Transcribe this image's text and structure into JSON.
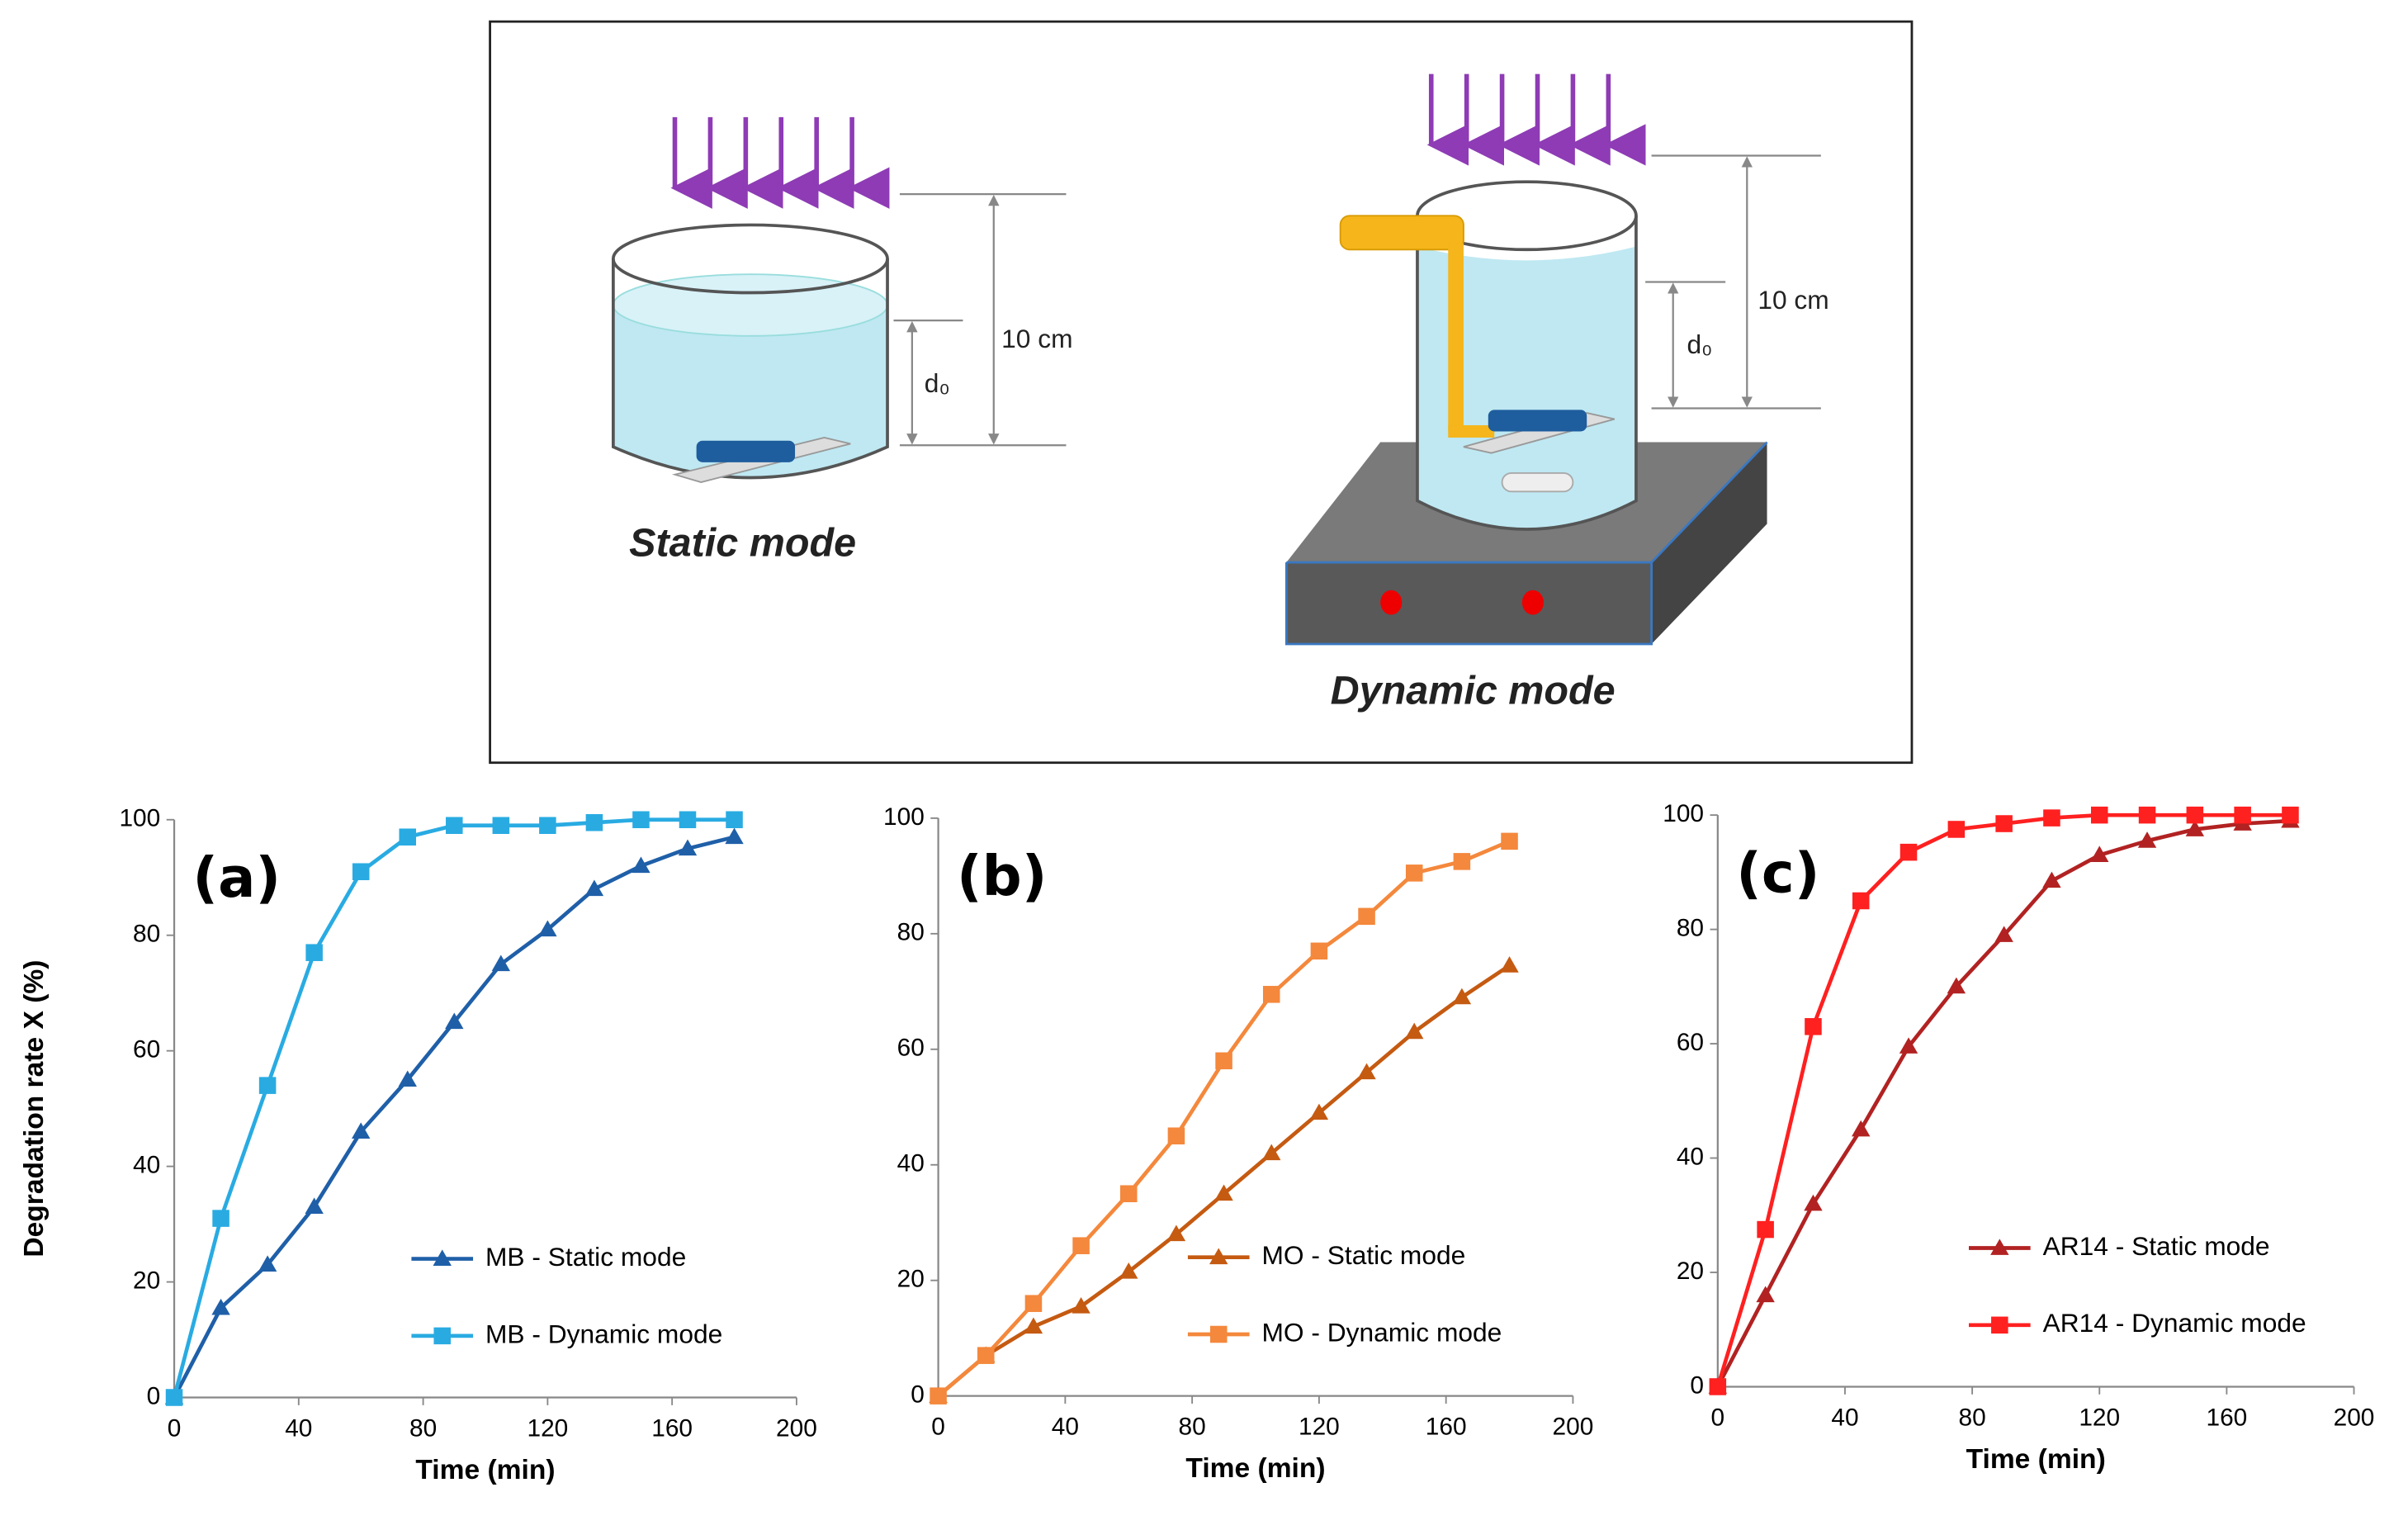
{
  "diagram": {
    "static_label": "Static mode",
    "dynamic_label": "Dynamic mode",
    "static_height": "10 cm",
    "dynamic_height": "10 cm",
    "static_depth": "d₀",
    "dynamic_depth": "d₀"
  },
  "chart_data": [
    {
      "type": "line",
      "label": "(a)",
      "x_label": "Time (min)",
      "y_label": "Degradation rate X (%)",
      "x": [
        0,
        15,
        30,
        45,
        60,
        75,
        90,
        105,
        120,
        135,
        150,
        165,
        180
      ],
      "series": [
        {
          "name": "MB - Static mode",
          "color": "#1f5fa8",
          "marker": "triangle",
          "values": [
            0,
            15.5,
            23,
            33,
            46,
            55,
            65,
            75,
            81,
            88,
            92,
            95,
            97
          ]
        },
        {
          "name": "MB - Dynamic mode",
          "color": "#29abe2",
          "marker": "square",
          "values": [
            0,
            31,
            54,
            77,
            91,
            97,
            99,
            99,
            99,
            99.5,
            100,
            100,
            100
          ]
        }
      ],
      "xlim": [
        0,
        200
      ],
      "xticks": [
        0,
        40,
        80,
        120,
        160,
        200
      ],
      "ylim": [
        0,
        100
      ],
      "yticks": [
        0,
        20,
        40,
        60,
        80,
        100
      ],
      "legend": "lower right"
    },
    {
      "type": "line",
      "label": "(b)",
      "x_label": "Time (min)",
      "x": [
        0,
        15,
        30,
        45,
        60,
        75,
        90,
        105,
        120,
        135,
        150,
        165,
        180
      ],
      "series": [
        {
          "name": "MO - Static mode",
          "color": "#c55a11",
          "marker": "triangle",
          "values": [
            0,
            7,
            12,
            15.5,
            21.5,
            28,
            35,
            42,
            49,
            56,
            63,
            69,
            74.5
          ]
        },
        {
          "name": "MO - Dynamic mode",
          "color": "#f4883c",
          "marker": "square",
          "values": [
            0,
            7,
            16,
            26,
            35,
            45,
            58,
            69.5,
            77,
            83,
            90.5,
            92.5,
            96
          ]
        }
      ],
      "xlim": [
        0,
        200
      ],
      "xticks": [
        0,
        40,
        80,
        120,
        160,
        200
      ],
      "ylim": [
        0,
        100
      ],
      "yticks": [
        0,
        20,
        40,
        60,
        80,
        100
      ],
      "legend": "lower right"
    },
    {
      "type": "line",
      "label": "(c)",
      "x_label": "Time (min)",
      "x": [
        0,
        15,
        30,
        45,
        60,
        75,
        90,
        105,
        120,
        135,
        150,
        165,
        180
      ],
      "series": [
        {
          "name": "AR14 - Static mode",
          "color": "#b22222",
          "marker": "triangle",
          "values": [
            0,
            16,
            32,
            45,
            59.5,
            70,
            79,
            88.5,
            93,
            95.5,
            97.5,
            98.5,
            99
          ]
        },
        {
          "name": "AR14 - Dynamic mode",
          "color": "#ff2020",
          "marker": "square",
          "values": [
            0,
            27.5,
            63,
            85,
            93.5,
            97.5,
            98.5,
            99.5,
            100,
            100,
            100,
            100,
            100
          ]
        }
      ],
      "xlim": [
        0,
        200
      ],
      "xticks": [
        0,
        40,
        80,
        120,
        160,
        200
      ],
      "ylim": [
        0,
        100
      ],
      "yticks": [
        0,
        20,
        40,
        60,
        80,
        100
      ],
      "legend": "lower right"
    }
  ]
}
